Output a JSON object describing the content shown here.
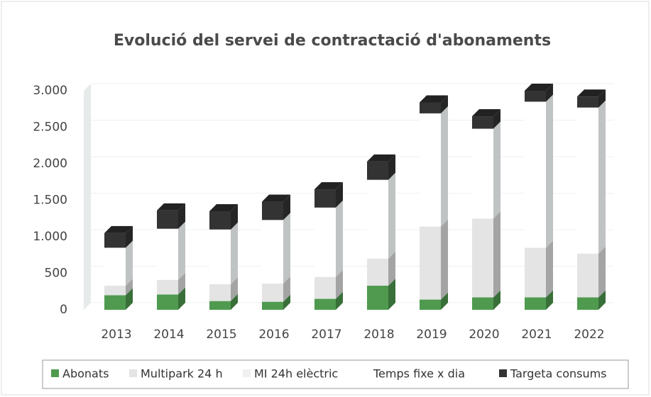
{
  "chart_data": {
    "type": "bar",
    "stacked": true,
    "title": "Evolució del servei de contractació d'abonaments",
    "categories": [
      "2013",
      "2014",
      "2015",
      "2016",
      "2017",
      "2018",
      "2019",
      "2020",
      "2021",
      "2022"
    ],
    "series": [
      {
        "name": "Abonats",
        "color": "#4f9a4f",
        "values": [
          200,
          210,
          120,
          110,
          150,
          330,
          140,
          170,
          170,
          170
        ]
      },
      {
        "name": "Multipark 24 h",
        "color": "#e4e4e4",
        "values": [
          130,
          200,
          230,
          250,
          300,
          370,
          1000,
          1080,
          680,
          600
        ]
      },
      {
        "name": "MI 24h elèctric",
        "color": "#f0f0f0",
        "values": [
          0,
          0,
          0,
          0,
          0,
          0,
          0,
          0,
          0,
          0
        ]
      },
      {
        "name": "Temps fixe x dia",
        "color": "#ffffff",
        "values": [
          520,
          700,
          750,
          870,
          950,
          1080,
          1550,
          1230,
          2000,
          2000
        ]
      },
      {
        "name": "Targeta consums",
        "color": "#333333",
        "values": [
          200,
          250,
          250,
          250,
          250,
          250,
          150,
          170,
          150,
          150
        ]
      }
    ],
    "ylim": [
      0,
      3000
    ],
    "yticks": [
      0,
      500,
      {
        "value": 1000,
        "label": "1.000"
      },
      {
        "value": 1500,
        "label": "1.500"
      },
      {
        "value": 2000,
        "label": "2.000"
      },
      {
        "value": 2500,
        "label": "2.500"
      },
      {
        "value": 3000,
        "label": "3.000"
      }
    ],
    "legend": "bottom"
  }
}
